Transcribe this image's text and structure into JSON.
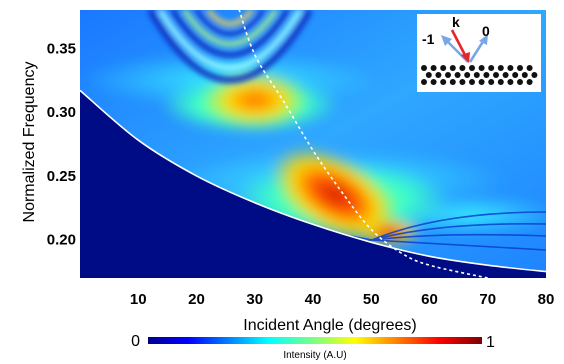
{
  "chart_data": {
    "type": "heatmap",
    "title": "",
    "xlabel": "Incident Angle (degrees)",
    "ylabel": "Normalized Frequency",
    "xlim": [
      0,
      80
    ],
    "ylim": [
      0.17,
      0.38
    ],
    "x_ticks": [
      10,
      20,
      30,
      40,
      50,
      60,
      70,
      80
    ],
    "y_ticks": [
      0.2,
      0.25,
      0.3,
      0.35
    ],
    "colorbar": {
      "label": "Intensity (A.U)",
      "min_label": "0",
      "max_label": "1",
      "colormap": "jet"
    },
    "curves": [
      {
        "style": "solid",
        "color": "#ffffff",
        "points": [
          [
            0,
            0.317
          ],
          [
            10,
            0.278
          ],
          [
            20,
            0.25
          ],
          [
            30,
            0.229
          ],
          [
            40,
            0.212
          ],
          [
            50,
            0.198
          ],
          [
            60,
            0.187
          ],
          [
            70,
            0.18
          ],
          [
            80,
            0.175
          ]
        ]
      },
      {
        "style": "dashed",
        "color": "#ffffff",
        "points": [
          [
            27,
            0.385
          ],
          [
            30,
            0.345
          ],
          [
            35,
            0.308
          ],
          [
            40,
            0.27
          ],
          [
            45,
            0.237
          ],
          [
            50,
            0.208
          ],
          [
            55,
            0.19
          ],
          [
            60,
            0.18
          ],
          [
            70,
            0.17
          ]
        ]
      }
    ],
    "inset": {
      "labels": [
        "-1",
        "k",
        "0"
      ],
      "arrow_colors": {
        "k": "#e8232a",
        "-1": "#7aa6e6",
        "0": "#7aa6e6"
      }
    }
  }
}
